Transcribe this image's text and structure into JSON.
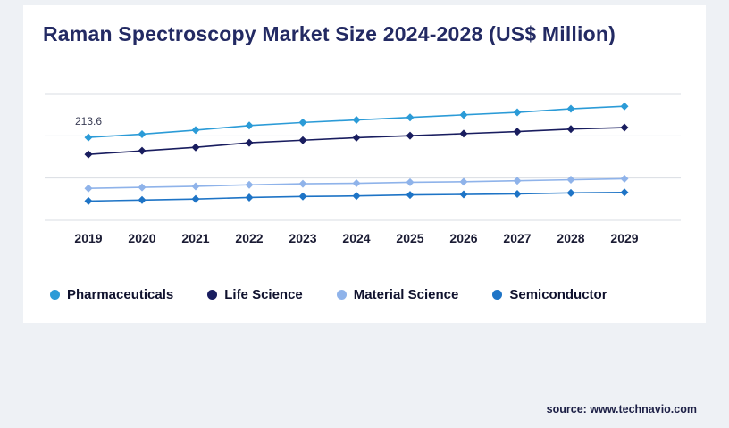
{
  "title": "Raman Spectroscopy Market Size 2024-2028 (US$ Million)",
  "source": "source: www.technavio.com",
  "annotation": {
    "text": "213.6",
    "series": "Pharmaceuticals",
    "x": "2019"
  },
  "colors": {
    "page_background": "#eef1f5",
    "panel_background": "#ffffff",
    "title_text": "#232a63",
    "gridline": "#d9dde3"
  },
  "chart_data": {
    "type": "line",
    "title": "Raman Spectroscopy Market Size 2024-2028 (US$ Million)",
    "xlabel": "",
    "ylabel": "US$ Million",
    "x": [
      "2019",
      "2020",
      "2021",
      "2022",
      "2023",
      "2024",
      "2025",
      "2026",
      "2027",
      "2028",
      "2029"
    ],
    "series": [
      {
        "name": "Pharmaceuticals",
        "color": "#2B9BD7",
        "values": [
          213.6,
          220,
          228,
          237,
          243,
          248,
          253,
          258,
          263,
          270,
          275
        ]
      },
      {
        "name": "Life Science",
        "color": "#191D5F",
        "values": [
          180,
          187,
          194,
          203,
          208,
          213,
          217,
          221,
          225,
          230,
          233
        ]
      },
      {
        "name": "Material Science",
        "color": "#8FB3EA",
        "values": [
          113,
          115,
          117,
          120,
          122,
          123,
          125,
          126,
          128,
          130,
          132
        ]
      },
      {
        "name": "Semiconductor",
        "color": "#1E74C6",
        "values": [
          88,
          90,
          92,
          95,
          97,
          98,
          100,
          101,
          102,
          104,
          105
        ]
      }
    ],
    "ylim": [
      50,
      300
    ],
    "grid": true,
    "gridline_count": 4,
    "legend_position": "bottom",
    "marker": "diamond"
  }
}
